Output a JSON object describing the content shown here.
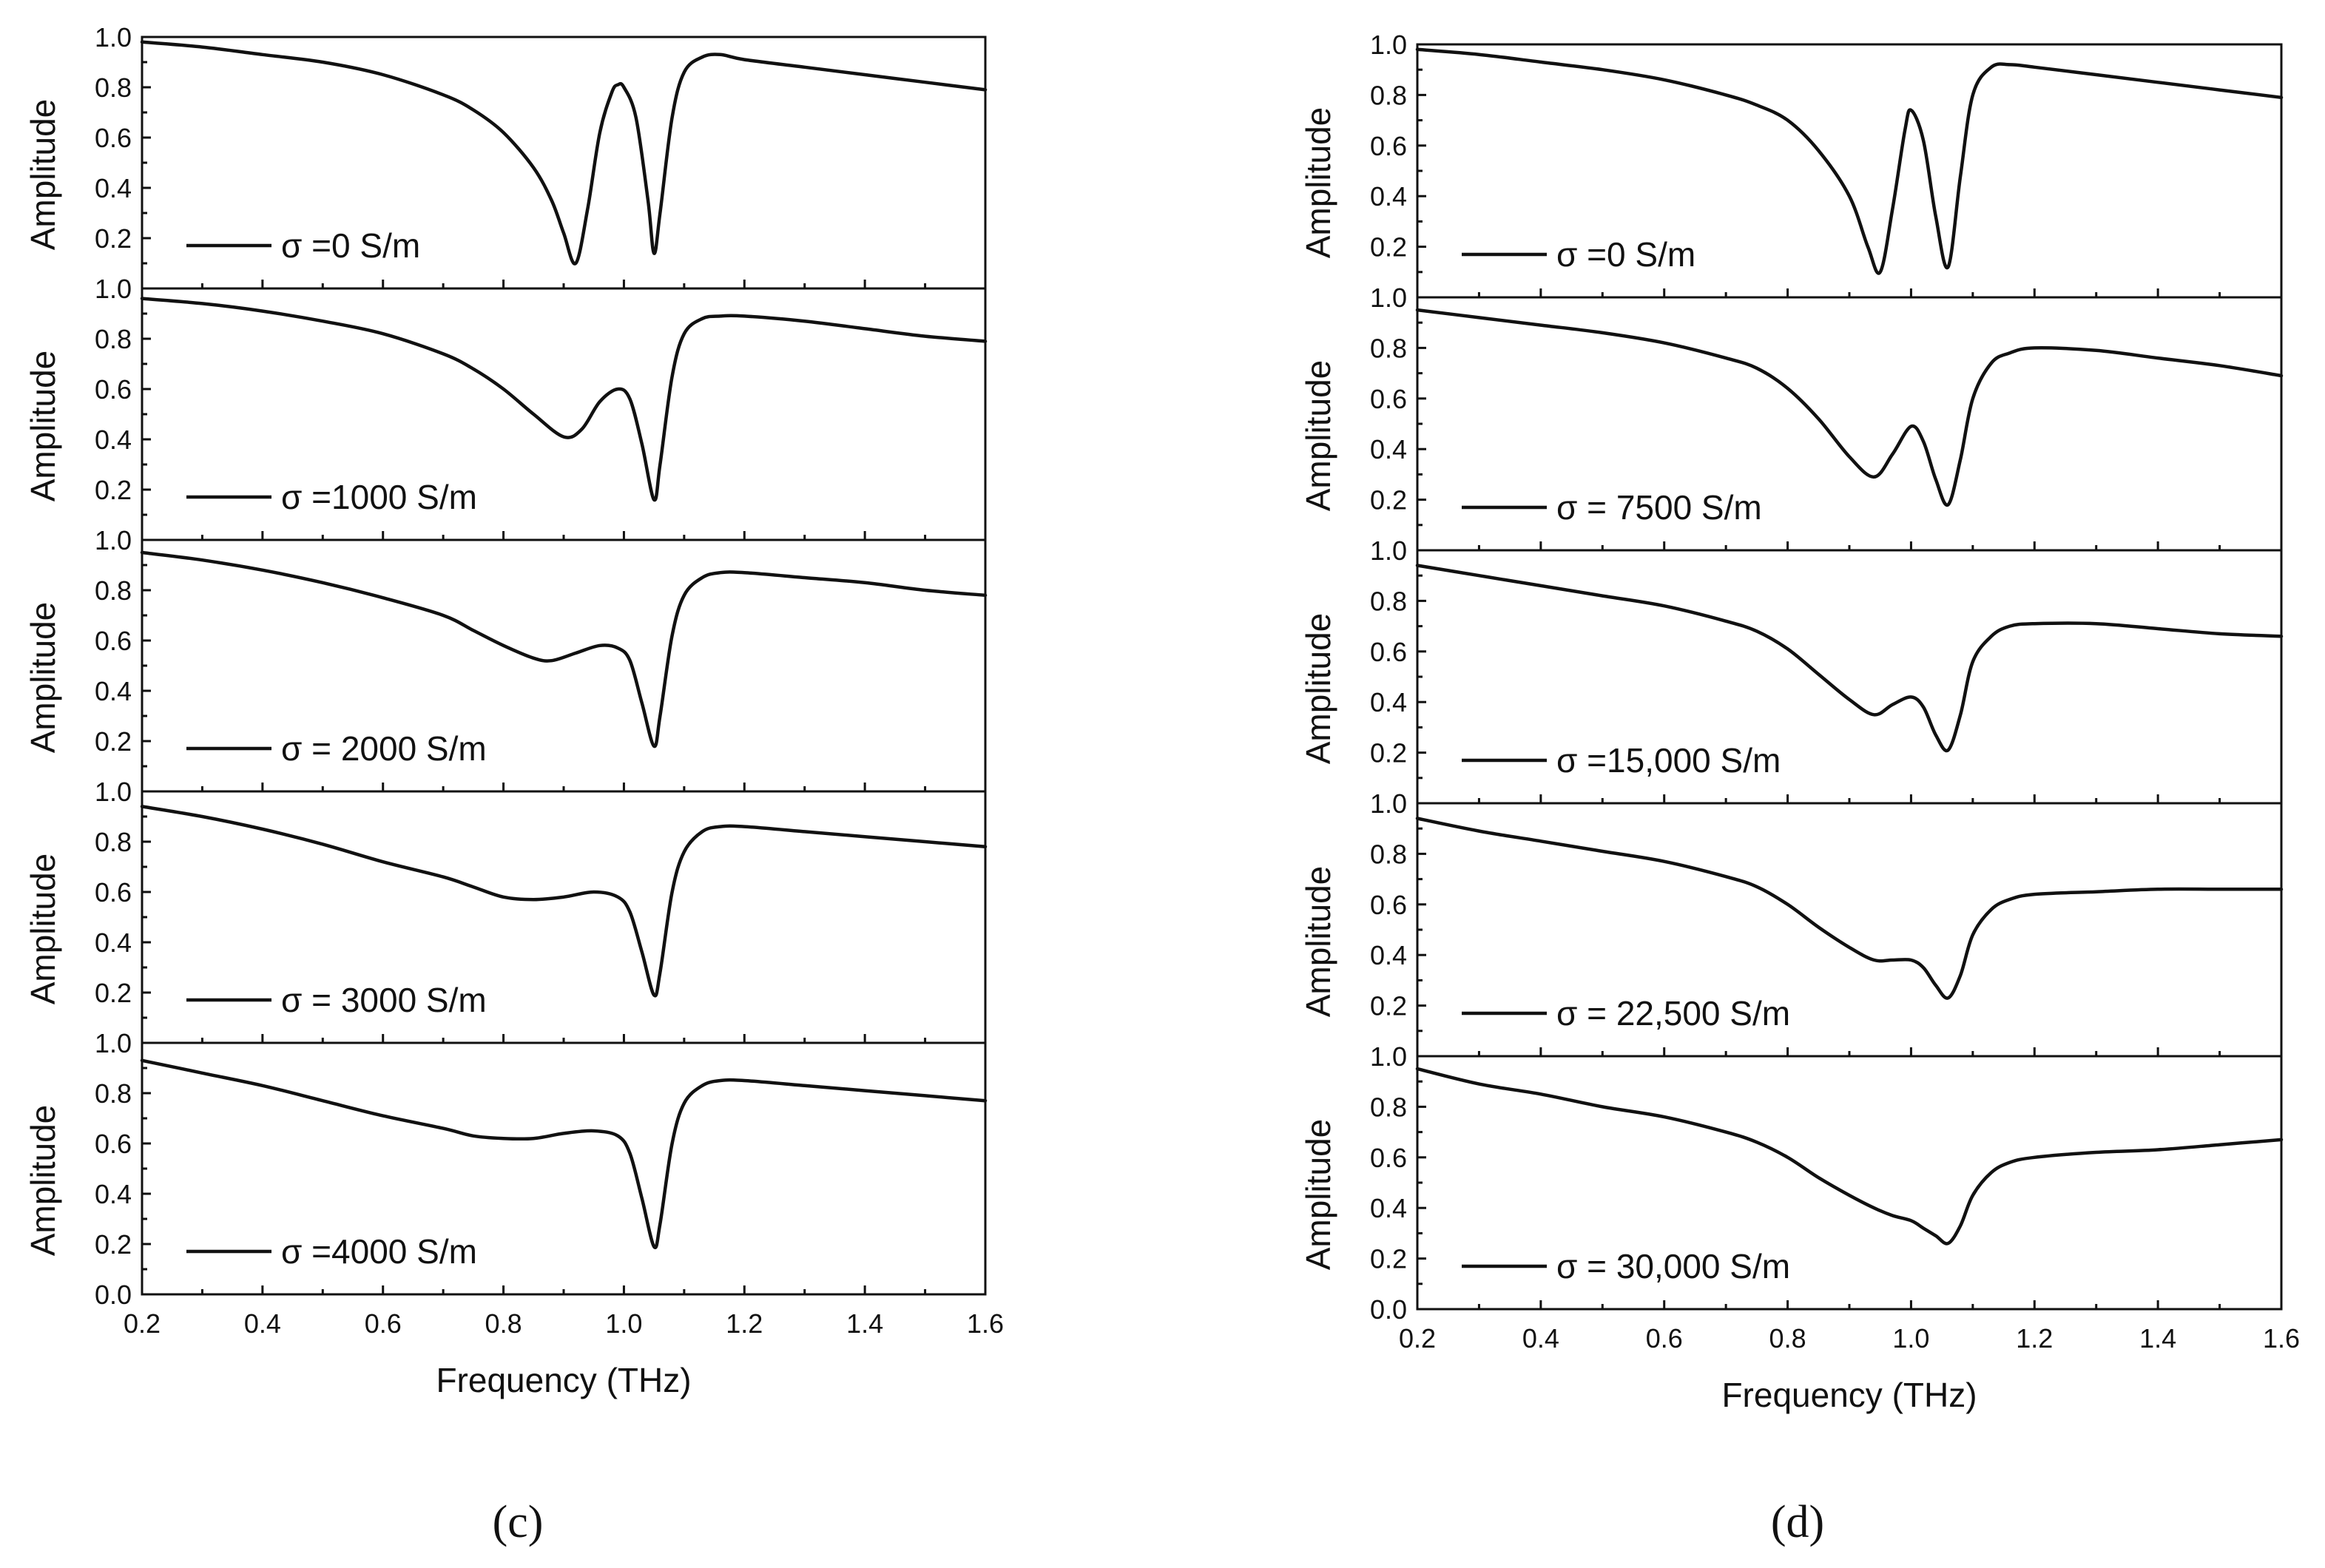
{
  "colors": {
    "curve": "#111111",
    "axis": "#111111",
    "background": "#ffffff"
  },
  "chart_data": [
    {
      "type": "line",
      "caption": "(c)",
      "xlabel": "Frequency (THz)",
      "ylabel": "Amplitude",
      "xlim": [
        0.2,
        1.6
      ],
      "ylim": [
        0.0,
        1.0
      ],
      "xticks": [
        "0.2",
        "0.4",
        "0.6",
        "0.8",
        "1.0",
        "1.2",
        "1.4",
        "1.6"
      ],
      "grid": false,
      "subplots": [
        {
          "legend": "σ =0 S/m",
          "yticks": [
            "1.0",
            "0.8",
            "0.6",
            "0.4",
            "0.2"
          ],
          "x": [
            0.2,
            0.3,
            0.4,
            0.5,
            0.6,
            0.7,
            0.75,
            0.8,
            0.85,
            0.88,
            0.9,
            0.92,
            0.94,
            0.96,
            0.98,
            0.99,
            1.0,
            1.02,
            1.04,
            1.05,
            1.06,
            1.08,
            1.1,
            1.13,
            1.16,
            1.2,
            1.3,
            1.4,
            1.5,
            1.6
          ],
          "y": [
            0.98,
            0.96,
            0.93,
            0.9,
            0.85,
            0.77,
            0.71,
            0.62,
            0.48,
            0.35,
            0.22,
            0.1,
            0.32,
            0.62,
            0.78,
            0.81,
            0.8,
            0.68,
            0.35,
            0.14,
            0.3,
            0.68,
            0.86,
            0.92,
            0.93,
            0.91,
            0.88,
            0.85,
            0.82,
            0.79
          ]
        },
        {
          "legend": "σ =1000 S/m",
          "yticks": [
            "1.0",
            "0.8",
            "0.6",
            "0.4",
            "0.2"
          ],
          "x": [
            0.2,
            0.3,
            0.4,
            0.5,
            0.6,
            0.7,
            0.75,
            0.8,
            0.85,
            0.9,
            0.93,
            0.96,
            0.99,
            1.01,
            1.03,
            1.05,
            1.06,
            1.08,
            1.1,
            1.13,
            1.16,
            1.2,
            1.3,
            1.4,
            1.5,
            1.6
          ],
          "y": [
            0.96,
            0.94,
            0.91,
            0.87,
            0.82,
            0.74,
            0.68,
            0.6,
            0.5,
            0.41,
            0.44,
            0.55,
            0.6,
            0.56,
            0.38,
            0.16,
            0.3,
            0.65,
            0.82,
            0.88,
            0.89,
            0.89,
            0.87,
            0.84,
            0.81,
            0.79
          ]
        },
        {
          "legend": "σ = 2000 S/m",
          "yticks": [
            "1.0",
            "0.8",
            "0.6",
            "0.4",
            "0.2"
          ],
          "x": [
            0.2,
            0.3,
            0.4,
            0.5,
            0.6,
            0.7,
            0.75,
            0.8,
            0.85,
            0.88,
            0.92,
            0.96,
            0.99,
            1.01,
            1.03,
            1.05,
            1.06,
            1.08,
            1.1,
            1.13,
            1.16,
            1.2,
            1.3,
            1.4,
            1.5,
            1.6
          ],
          "y": [
            0.95,
            0.92,
            0.88,
            0.83,
            0.77,
            0.7,
            0.64,
            0.58,
            0.53,
            0.52,
            0.55,
            0.58,
            0.57,
            0.52,
            0.35,
            0.18,
            0.3,
            0.62,
            0.78,
            0.85,
            0.87,
            0.87,
            0.85,
            0.83,
            0.8,
            0.78
          ]
        },
        {
          "legend": "σ = 3000 S/m",
          "yticks": [
            "1.0",
            "0.8",
            "0.6",
            "0.4",
            "0.2"
          ],
          "x": [
            0.2,
            0.3,
            0.4,
            0.5,
            0.6,
            0.7,
            0.75,
            0.8,
            0.85,
            0.9,
            0.95,
            0.99,
            1.01,
            1.03,
            1.05,
            1.06,
            1.08,
            1.1,
            1.13,
            1.16,
            1.2,
            1.3,
            1.4,
            1.5,
            1.6
          ],
          "y": [
            0.94,
            0.9,
            0.85,
            0.79,
            0.72,
            0.66,
            0.62,
            0.58,
            0.57,
            0.58,
            0.6,
            0.58,
            0.52,
            0.36,
            0.19,
            0.28,
            0.6,
            0.76,
            0.84,
            0.86,
            0.86,
            0.84,
            0.82,
            0.8,
            0.78
          ]
        },
        {
          "legend": "σ =4000 S/m",
          "yticks": [
            "1.0",
            "0.8",
            "0.6",
            "0.4",
            "0.2",
            "0.0"
          ],
          "x": [
            0.2,
            0.3,
            0.4,
            0.5,
            0.6,
            0.7,
            0.75,
            0.8,
            0.85,
            0.9,
            0.95,
            0.99,
            1.01,
            1.03,
            1.05,
            1.06,
            1.08,
            1.1,
            1.13,
            1.16,
            1.2,
            1.3,
            1.4,
            1.5,
            1.6
          ],
          "y": [
            0.93,
            0.88,
            0.83,
            0.77,
            0.71,
            0.66,
            0.63,
            0.62,
            0.62,
            0.64,
            0.65,
            0.63,
            0.56,
            0.38,
            0.19,
            0.28,
            0.6,
            0.76,
            0.83,
            0.85,
            0.85,
            0.83,
            0.81,
            0.79,
            0.77
          ]
        }
      ]
    },
    {
      "type": "line",
      "caption": "(d)",
      "xlabel": "Frequency (THz)",
      "ylabel": "Amplitude",
      "xlim": [
        0.2,
        1.6
      ],
      "ylim": [
        0.0,
        1.0
      ],
      "xticks": [
        "0.2",
        "0.4",
        "0.6",
        "0.8",
        "1.0",
        "1.2",
        "1.4",
        "1.6"
      ],
      "grid": false,
      "subplots": [
        {
          "legend": "σ =0 S/m",
          "yticks": [
            "1.0",
            "0.8",
            "0.6",
            "0.4",
            "0.2"
          ],
          "x": [
            0.2,
            0.3,
            0.4,
            0.5,
            0.6,
            0.7,
            0.75,
            0.8,
            0.85,
            0.9,
            0.93,
            0.95,
            0.97,
            0.99,
            1.0,
            1.02,
            1.04,
            1.06,
            1.08,
            1.1,
            1.13,
            1.16,
            1.2,
            1.3,
            1.4,
            1.5,
            1.6
          ],
          "y": [
            0.98,
            0.96,
            0.93,
            0.9,
            0.86,
            0.8,
            0.76,
            0.7,
            0.58,
            0.4,
            0.2,
            0.1,
            0.35,
            0.66,
            0.74,
            0.62,
            0.32,
            0.12,
            0.48,
            0.8,
            0.91,
            0.92,
            0.91,
            0.88,
            0.85,
            0.82,
            0.79
          ]
        },
        {
          "legend": "σ = 7500 S/m",
          "yticks": [
            "1.0",
            "0.8",
            "0.6",
            "0.4",
            "0.2"
          ],
          "x": [
            0.2,
            0.3,
            0.4,
            0.5,
            0.6,
            0.7,
            0.75,
            0.8,
            0.85,
            0.9,
            0.94,
            0.97,
            1.0,
            1.02,
            1.04,
            1.06,
            1.08,
            1.1,
            1.13,
            1.16,
            1.2,
            1.3,
            1.4,
            1.5,
            1.6
          ],
          "y": [
            0.95,
            0.92,
            0.89,
            0.86,
            0.82,
            0.76,
            0.72,
            0.64,
            0.52,
            0.37,
            0.29,
            0.38,
            0.49,
            0.43,
            0.28,
            0.18,
            0.36,
            0.6,
            0.74,
            0.78,
            0.8,
            0.79,
            0.76,
            0.73,
            0.69
          ]
        },
        {
          "legend": "σ =15,000 S/m",
          "yticks": [
            "1.0",
            "0.8",
            "0.6",
            "0.4",
            "0.2"
          ],
          "x": [
            0.2,
            0.3,
            0.4,
            0.5,
            0.6,
            0.7,
            0.75,
            0.8,
            0.85,
            0.9,
            0.94,
            0.97,
            1.0,
            1.02,
            1.04,
            1.06,
            1.08,
            1.1,
            1.13,
            1.16,
            1.2,
            1.3,
            1.4,
            1.5,
            1.6
          ],
          "y": [
            0.94,
            0.9,
            0.86,
            0.82,
            0.78,
            0.72,
            0.68,
            0.61,
            0.51,
            0.41,
            0.35,
            0.39,
            0.42,
            0.38,
            0.27,
            0.21,
            0.35,
            0.56,
            0.66,
            0.7,
            0.71,
            0.71,
            0.69,
            0.67,
            0.66
          ]
        },
        {
          "legend": "σ = 22,500 S/m",
          "yticks": [
            "1.0",
            "0.8",
            "0.6",
            "0.4",
            "0.2"
          ],
          "x": [
            0.2,
            0.3,
            0.4,
            0.5,
            0.6,
            0.7,
            0.75,
            0.8,
            0.85,
            0.9,
            0.94,
            0.97,
            1.0,
            1.02,
            1.04,
            1.06,
            1.08,
            1.1,
            1.13,
            1.16,
            1.2,
            1.3,
            1.4,
            1.5,
            1.6
          ],
          "y": [
            0.94,
            0.89,
            0.85,
            0.81,
            0.77,
            0.71,
            0.67,
            0.6,
            0.51,
            0.43,
            0.38,
            0.38,
            0.38,
            0.35,
            0.28,
            0.23,
            0.32,
            0.48,
            0.58,
            0.62,
            0.64,
            0.65,
            0.66,
            0.66,
            0.66
          ]
        },
        {
          "legend": "σ = 30,000 S/m",
          "yticks": [
            "1.0",
            "0.8",
            "0.6",
            "0.4",
            "0.2",
            "0.0"
          ],
          "x": [
            0.2,
            0.3,
            0.4,
            0.5,
            0.6,
            0.7,
            0.75,
            0.8,
            0.85,
            0.9,
            0.94,
            0.97,
            1.0,
            1.02,
            1.04,
            1.06,
            1.08,
            1.1,
            1.13,
            1.16,
            1.2,
            1.3,
            1.4,
            1.5,
            1.6
          ],
          "y": [
            0.95,
            0.89,
            0.85,
            0.8,
            0.76,
            0.7,
            0.66,
            0.6,
            0.52,
            0.45,
            0.4,
            0.37,
            0.35,
            0.32,
            0.29,
            0.26,
            0.33,
            0.45,
            0.54,
            0.58,
            0.6,
            0.62,
            0.63,
            0.65,
            0.67
          ]
        }
      ]
    }
  ]
}
